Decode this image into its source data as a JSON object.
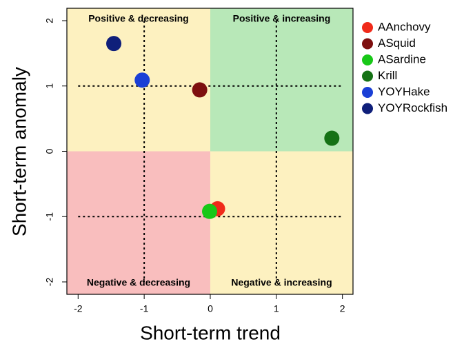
{
  "chart_data": {
    "type": "scatter",
    "x_label": "Short-term trend",
    "y_label": "Short-term anomaly",
    "xlim": [
      -2.17,
      2.16
    ],
    "ylim": [
      -2.19,
      2.19
    ],
    "xticks": [
      -2,
      -1,
      0,
      1,
      2
    ],
    "yticks": [
      -2,
      -1,
      0,
      1,
      2
    ],
    "quadrants": [
      {
        "label": "Positive & decreasing",
        "color": "#fdf1c0"
      },
      {
        "label": "Positive & increasing",
        "color": "#b8e8b8"
      },
      {
        "label": "Negative & decreasing",
        "color": "#f9bebe"
      },
      {
        "label": "Negative & increasing",
        "color": "#fdf1c0"
      }
    ],
    "series": [
      {
        "name": "AAnchovy",
        "color": "#f02a1a",
        "x": [
          0.11
        ],
        "values": [
          -0.88
        ]
      },
      {
        "name": "ASquid",
        "color": "#7d0f0f",
        "x": [
          -0.16
        ],
        "values": [
          0.94
        ]
      },
      {
        "name": "ASardine",
        "color": "#18c818",
        "x": [
          -0.01
        ],
        "values": [
          -0.92
        ]
      },
      {
        "name": "Krill",
        "color": "#157215",
        "x": [
          1.84
        ],
        "values": [
          0.2
        ]
      },
      {
        "name": "YOYHake",
        "color": "#1a3fd6",
        "x": [
          -1.03
        ],
        "values": [
          1.09
        ]
      },
      {
        "name": "YOYRockfish",
        "color": "#0f1f7a",
        "x": [
          -1.46
        ],
        "values": [
          1.65
        ]
      }
    ]
  }
}
